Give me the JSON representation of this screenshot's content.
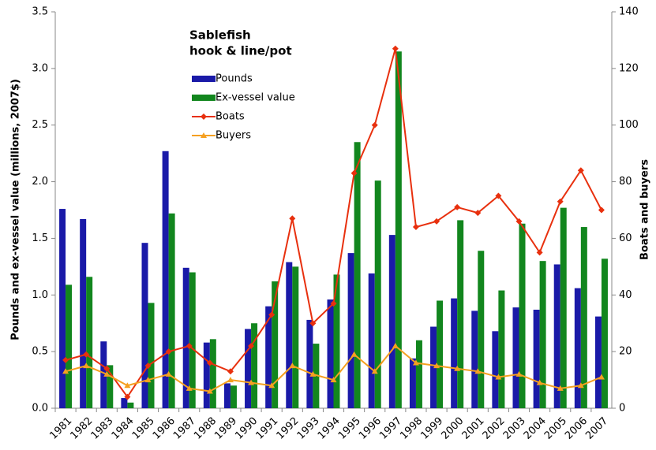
{
  "chart_data": {
    "type": "bar-line",
    "title": "Sablefish",
    "subtitle": "hook & line/pot",
    "y_label": "Pounds and ex-vessel value (millions, 2007$)",
    "y2_label": "Boats and buyers",
    "categories": [
      "1981",
      "1982",
      "1983",
      "1984",
      "1985",
      "1986",
      "1987",
      "1988",
      "1989",
      "1990",
      "1991",
      "1992",
      "1993",
      "1994",
      "1995",
      "1996",
      "1997",
      "1998",
      "1999",
      "2000",
      "2001",
      "2002",
      "2003",
      "2004",
      "2005",
      "2006",
      "2007"
    ],
    "series": [
      {
        "name": "Pounds",
        "kind": "bar",
        "color": "#1a1aa8",
        "values": [
          1.76,
          1.67,
          0.59,
          0.09,
          1.46,
          2.27,
          1.24,
          0.58,
          0.22,
          0.7,
          0.9,
          1.29,
          0.78,
          0.96,
          1.37,
          1.19,
          1.53,
          0.44,
          0.72,
          0.97,
          0.86,
          0.68,
          0.89,
          0.87,
          1.27,
          1.06,
          0.81
        ]
      },
      {
        "name": "Ex-vessel value",
        "kind": "bar",
        "color": "#12861e",
        "values": [
          1.09,
          1.16,
          0.38,
          0.05,
          0.93,
          1.72,
          1.2,
          0.61,
          0.2,
          0.75,
          1.12,
          1.25,
          0.57,
          1.18,
          2.35,
          2.01,
          3.15,
          0.6,
          0.95,
          1.66,
          1.39,
          1.04,
          1.63,
          1.3,
          1.77,
          1.6,
          1.32
        ]
      },
      {
        "name": "Boats",
        "kind": "line",
        "marker": "diamond",
        "axis": "y2",
        "color": "#e8300e",
        "values": [
          17,
          19,
          14,
          4,
          15,
          20,
          22,
          16,
          13,
          22,
          33,
          67,
          30,
          37,
          83,
          100,
          127,
          64,
          66,
          71,
          69,
          75,
          66,
          55,
          73,
          84,
          70
        ]
      },
      {
        "name": "Buyers",
        "kind": "line",
        "marker": "triangle",
        "axis": "y2",
        "color": "#f5a021",
        "values": [
          13,
          15,
          12,
          8,
          10,
          12,
          7,
          6,
          10,
          9,
          8,
          15,
          12,
          10,
          19,
          13,
          22,
          16,
          15,
          14,
          13,
          11,
          12,
          9,
          7,
          8,
          11
        ]
      }
    ],
    "ylim": [
      0,
      3.5
    ],
    "yticks": [
      {
        "value": 0,
        "label": "0.0"
      },
      0.5,
      {
        "value": 1,
        "label": "1.0"
      },
      1.5,
      {
        "value": 2,
        "label": "2.0"
      },
      2.5,
      {
        "value": 3,
        "label": "3.0"
      },
      3.5
    ],
    "y2lim": [
      0,
      140
    ],
    "y2ticks": [
      0,
      20,
      40,
      60,
      80,
      100,
      120,
      140
    ],
    "grid": false
  }
}
